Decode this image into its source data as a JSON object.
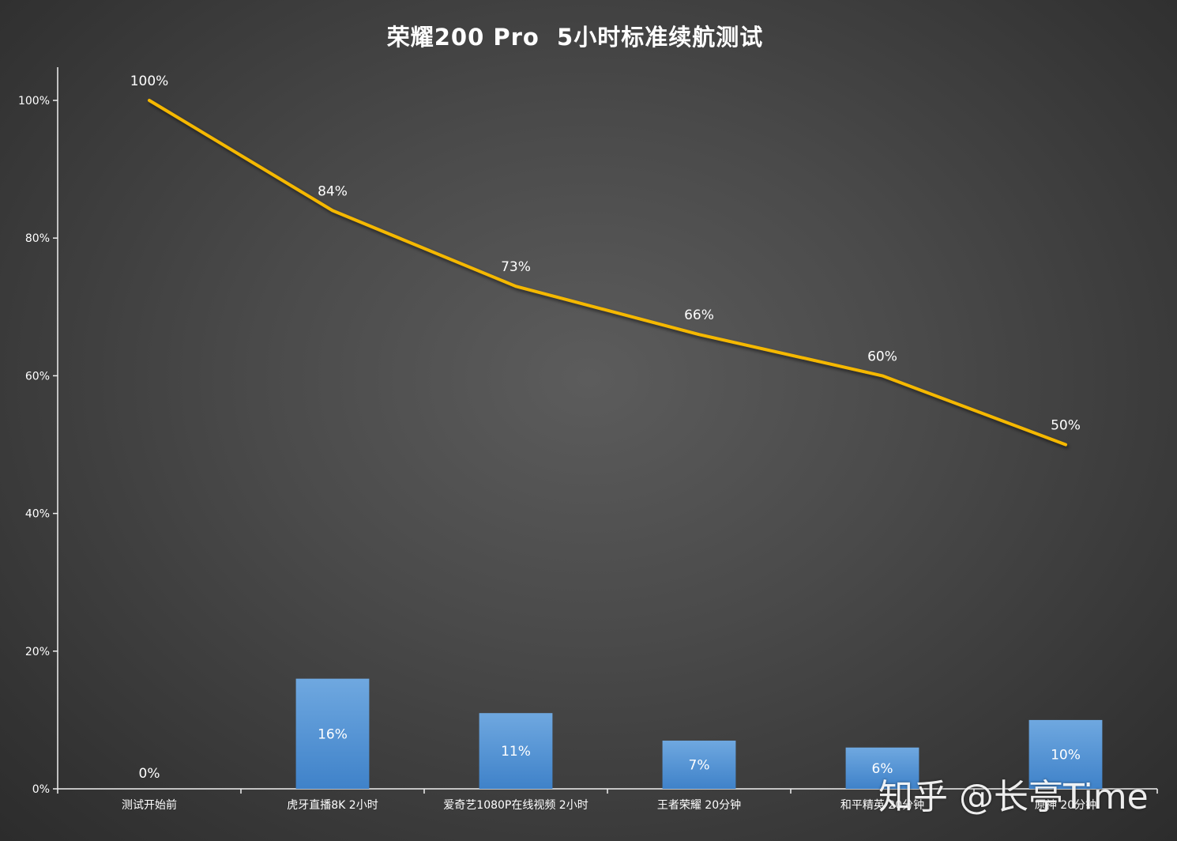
{
  "chart_data": {
    "type": "bar",
    "title": "荣耀200 Pro  5小时标准续航测试",
    "categories": [
      "测试开始前",
      "虎牙直播8K  2小时",
      "爱奇艺1080P在线视频 2小时",
      "王者荣耀 20分钟",
      "和平精英 20分钟",
      "原神 20分钟"
    ],
    "series": [
      {
        "type": "line",
        "values": [
          100,
          84,
          73,
          66,
          60,
          50
        ],
        "labels": [
          "100%",
          "84%",
          "73%",
          "66%",
          "60%",
          "50%"
        ],
        "color": "#f5b800"
      },
      {
        "type": "bar",
        "values": [
          0,
          16,
          11,
          7,
          6,
          10
        ],
        "labels": [
          "0%",
          "16%",
          "11%",
          "7%",
          "6%",
          "10%"
        ],
        "color": "#5b9bd5"
      }
    ],
    "ylim": [
      0,
      100
    ],
    "yticks": [
      0,
      20,
      40,
      60,
      80,
      100
    ],
    "ytick_labels": [
      "0%",
      "20%",
      "40%",
      "60%",
      "80%",
      "100%"
    ],
    "grid": false,
    "legend": "none"
  },
  "watermark": "知乎 @长亭Time"
}
